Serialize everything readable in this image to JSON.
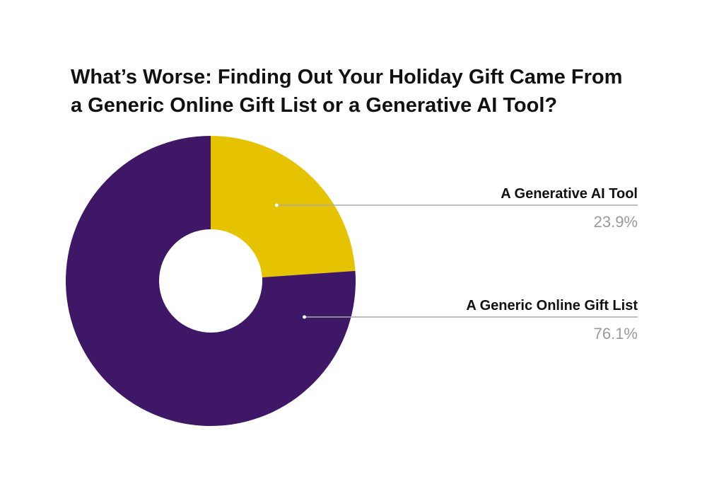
{
  "chart_data": {
    "type": "pie",
    "title": [
      "What’s Worse: Finding Out Your Holiday Gift Came From",
      "a Generic Online Gift List or a Generative AI Tool?"
    ],
    "categories": [
      "A Generative AI Tool",
      "A Generic Online Gift List"
    ],
    "values": [
      23.9,
      76.1
    ],
    "value_labels": [
      "23.9%",
      "76.1%"
    ],
    "colors": [
      "#e6c300",
      "#3f1767"
    ]
  }
}
